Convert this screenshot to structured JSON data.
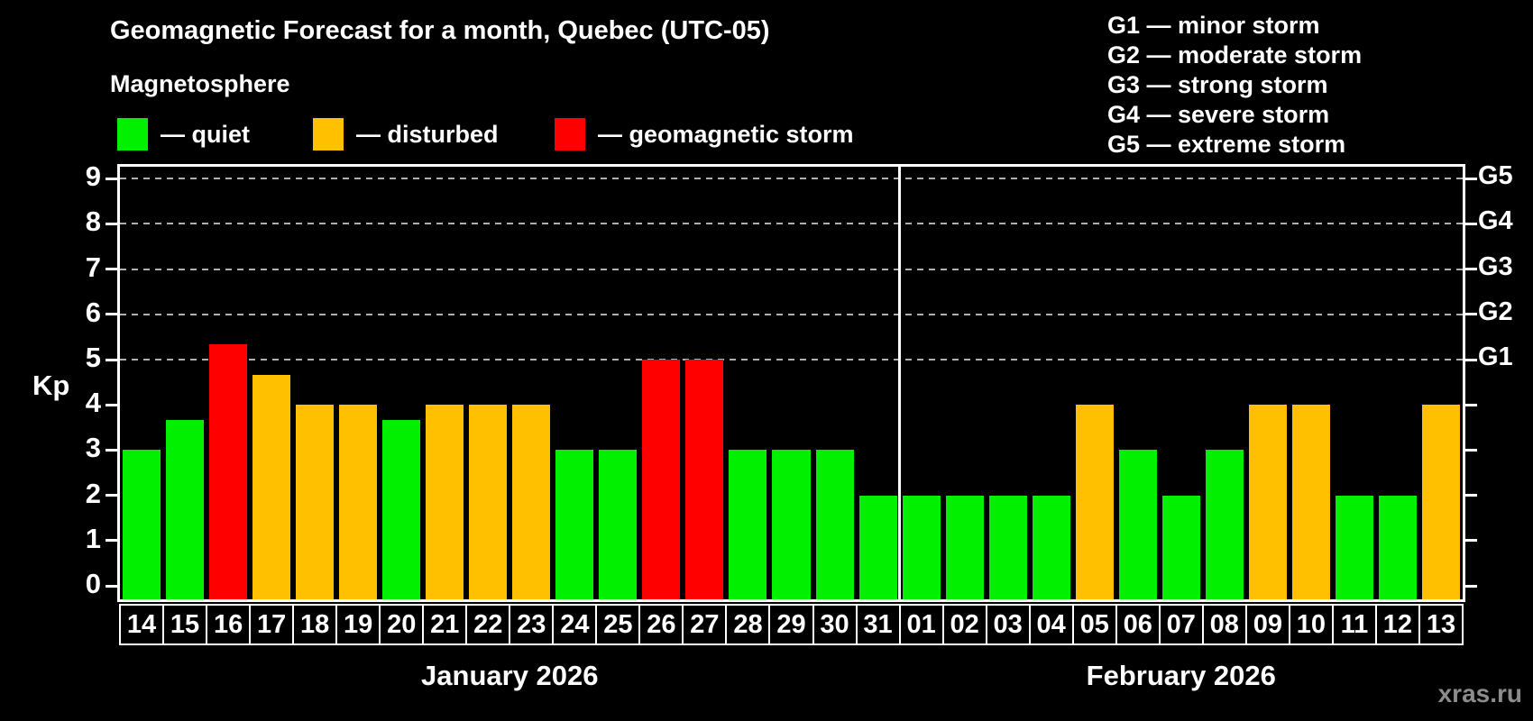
{
  "header": {
    "title": "Geomagnetic Forecast for a month, Quebec (UTC-05)",
    "subtitle": "Magnetosphere"
  },
  "legend": {
    "items": [
      {
        "id": "quiet",
        "label": "— quiet",
        "color": "#00f000"
      },
      {
        "id": "disturbed",
        "label": "— disturbed",
        "color": "#ffc000"
      },
      {
        "id": "storm",
        "label": "— geomagnetic storm",
        "color": "#ff0000"
      }
    ]
  },
  "g_scale_legend": {
    "items": [
      "G1 — minor storm",
      "G2 — moderate storm",
      "G3 — strong storm",
      "G4 — severe storm",
      "G5 — extreme storm"
    ]
  },
  "axes": {
    "y_title": "Kp",
    "y_ticks": [
      0,
      1,
      2,
      3,
      4,
      5,
      6,
      7,
      8,
      9
    ],
    "right_labels": [
      {
        "label": "G1",
        "value": 5
      },
      {
        "label": "G2",
        "value": 6
      },
      {
        "label": "G3",
        "value": 7
      },
      {
        "label": "G4",
        "value": 8
      },
      {
        "label": "G5",
        "value": 9
      }
    ]
  },
  "watermark": "xras.ru",
  "chart_data": {
    "type": "bar",
    "title": "Geomagnetic Forecast for a month, Quebec (UTC-05)",
    "ylabel": "Kp",
    "ylim": [
      0,
      9
    ],
    "grid": "dashed horizontal at Kp 5-9 (G1-G5)",
    "gridlines_at": [
      5,
      6,
      7,
      8,
      9
    ],
    "months": [
      {
        "label": "January 2026",
        "id": "jan",
        "count": 18
      },
      {
        "label": "February 2026",
        "id": "feb",
        "count": 13
      }
    ],
    "categories": [
      "14",
      "15",
      "16",
      "17",
      "18",
      "19",
      "20",
      "21",
      "22",
      "23",
      "24",
      "25",
      "26",
      "27",
      "28",
      "29",
      "30",
      "31",
      "01",
      "02",
      "03",
      "04",
      "05",
      "06",
      "07",
      "08",
      "09",
      "10",
      "11",
      "12",
      "13"
    ],
    "values": [
      3,
      3.67,
      5.33,
      4.67,
      4,
      4,
      3.67,
      4,
      4,
      4,
      3,
      3,
      5,
      5,
      3,
      3,
      3,
      2,
      2,
      2,
      2,
      2,
      4,
      3,
      2,
      3,
      4,
      4,
      2,
      2,
      4
    ],
    "levels": [
      "quiet",
      "quiet",
      "storm",
      "disturbed",
      "disturbed",
      "disturbed",
      "quiet",
      "disturbed",
      "disturbed",
      "disturbed",
      "quiet",
      "quiet",
      "storm",
      "storm",
      "quiet",
      "quiet",
      "quiet",
      "quiet",
      "quiet",
      "quiet",
      "quiet",
      "quiet",
      "disturbed",
      "quiet",
      "quiet",
      "quiet",
      "disturbed",
      "disturbed",
      "quiet",
      "quiet",
      "disturbed"
    ],
    "colors": {
      "quiet": "#00f000",
      "disturbed": "#ffc000",
      "storm": "#ff0000"
    }
  }
}
